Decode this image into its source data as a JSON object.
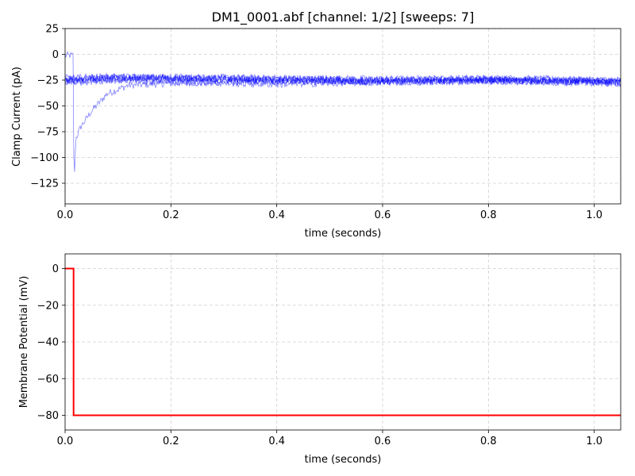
{
  "chart_data": [
    {
      "type": "line",
      "title": "DM1_0001.abf [channel: 1/2] [sweeps: 7]",
      "xlabel": "time (seconds)",
      "ylabel": "Clamp Current (pA)",
      "xlim": [
        0,
        1.05
      ],
      "ylim": [
        -145,
        25
      ],
      "xticks": [
        0.0,
        0.2,
        0.4,
        0.6,
        0.8,
        1.0
      ],
      "xtick_labels": [
        "0.0",
        "0.2",
        "0.4",
        "0.6",
        "0.8",
        "1.0"
      ],
      "yticks": [
        25,
        0,
        -25,
        -50,
        -75,
        -100,
        -125
      ],
      "ytick_labels": [
        "25",
        "0",
        "−25",
        "−50",
        "−75",
        "−100",
        "−125"
      ],
      "grid": true,
      "line_color": "#0000ff",
      "sweep_count": 7,
      "series": [
        {
          "x": [
            0,
            0.015,
            0.017,
            0.02,
            0.03,
            0.05,
            0.08,
            0.12,
            0.2,
            0.4,
            0.6,
            0.8,
            1.05
          ],
          "values": [
            -1,
            -1,
            -133,
            -82,
            -70,
            -55,
            -38,
            -30,
            -28,
            -26,
            -26,
            -25,
            -27
          ]
        },
        {
          "x": [
            0,
            0.016,
            0.02,
            0.05,
            0.1,
            0.2,
            0.4,
            0.6,
            0.8,
            1.05
          ],
          "values": [
            -24,
            -24,
            -24,
            -23,
            -22,
            -22,
            -23,
            -24,
            -23,
            -25
          ]
        },
        {
          "x": [
            0,
            0.016,
            0.02,
            0.05,
            0.1,
            0.2,
            0.4,
            0.6,
            0.8,
            1.05
          ],
          "values": [
            -25,
            -25,
            -25,
            -24,
            -23,
            -23,
            -24,
            -25,
            -24,
            -26
          ]
        },
        {
          "x": [
            0,
            0.016,
            0.02,
            0.05,
            0.1,
            0.2,
            0.4,
            0.6,
            0.8,
            1.05
          ],
          "values": [
            -23,
            -23,
            -23,
            -22,
            -22,
            -23,
            -24,
            -25,
            -24,
            -26
          ]
        },
        {
          "x": [
            0,
            0.016,
            0.02,
            0.05,
            0.1,
            0.2,
            0.4,
            0.6,
            0.8,
            1.05
          ],
          "values": [
            -27,
            -27,
            -27,
            -26,
            -25,
            -25,
            -26,
            -27,
            -26,
            -28
          ]
        },
        {
          "x": [
            0,
            0.016,
            0.02,
            0.05,
            0.1,
            0.2,
            0.4,
            0.6,
            0.8,
            1.05
          ],
          "values": [
            -24,
            -24,
            -24,
            -23,
            -22,
            -23,
            -25,
            -26,
            -25,
            -27
          ]
        },
        {
          "x": [
            0,
            0.016,
            0.02,
            0.05,
            0.1,
            0.2,
            0.4,
            0.6,
            0.8,
            1.05
          ],
          "values": [
            -26,
            -26,
            -26,
            -25,
            -24,
            -27,
            -29,
            -27,
            -26,
            -28
          ]
        }
      ]
    },
    {
      "type": "line",
      "title": "",
      "xlabel": "time (seconds)",
      "ylabel": "Membrane Potential (mV)",
      "xlim": [
        0,
        1.05
      ],
      "ylim": [
        -88,
        8
      ],
      "xticks": [
        0.0,
        0.2,
        0.4,
        0.6,
        0.8,
        1.0
      ],
      "xtick_labels": [
        "0.0",
        "0.2",
        "0.4",
        "0.6",
        "0.8",
        "1.0"
      ],
      "yticks": [
        0,
        -20,
        -40,
        -60,
        -80
      ],
      "ytick_labels": [
        "0",
        "−20",
        "−40",
        "−60",
        "−80"
      ],
      "grid": true,
      "line_color": "#ff0000",
      "series": [
        {
          "x": [
            0,
            0.016,
            0.016,
            1.05
          ],
          "values": [
            0,
            0,
            -80,
            -80
          ]
        }
      ]
    }
  ]
}
